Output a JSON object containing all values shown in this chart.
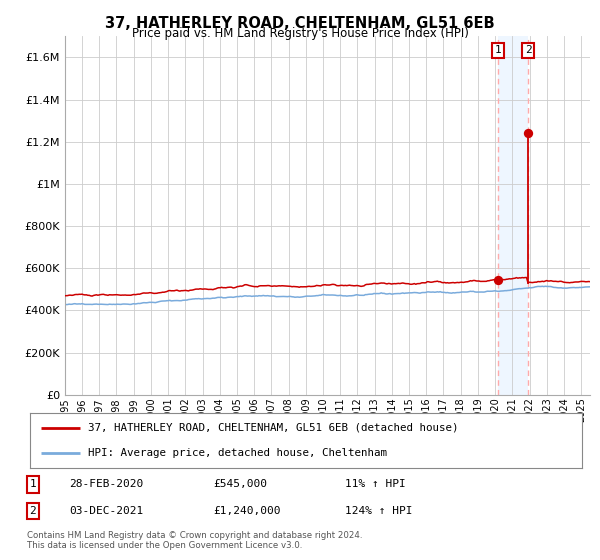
{
  "title": "37, HATHERLEY ROAD, CHELTENHAM, GL51 6EB",
  "subtitle": "Price paid vs. HM Land Registry's House Price Index (HPI)",
  "legend_line1": "37, HATHERLEY ROAD, CHELTENHAM, GL51 6EB (detached house)",
  "legend_line2": "HPI: Average price, detached house, Cheltenham",
  "sale1_label": "1",
  "sale1_date": "28-FEB-2020",
  "sale1_price": "£545,000",
  "sale1_hpi": "11% ↑ HPI",
  "sale1_year": 2020.16,
  "sale1_value": 545000,
  "sale2_label": "2",
  "sale2_date": "03-DEC-2021",
  "sale2_price": "£1,240,000",
  "sale2_hpi": "124% ↑ HPI",
  "sale2_year": 2021.92,
  "sale2_value": 1240000,
  "copyright": "Contains HM Land Registry data © Crown copyright and database right 2024.\nThis data is licensed under the Open Government Licence v3.0.",
  "hpi_color": "#7aabdc",
  "price_color": "#cc0000",
  "vline_color": "#ffaaaa",
  "shade_color": "#d0e8ff",
  "background_color": "#ffffff",
  "grid_color": "#cccccc",
  "ylim": [
    0,
    1700000
  ],
  "xlim_start": 1995.0,
  "xlim_end": 2025.5,
  "yticks": [
    0,
    200000,
    400000,
    600000,
    800000,
    1000000,
    1200000,
    1400000,
    1600000
  ],
  "ytick_labels": [
    "£0",
    "£200K",
    "£400K",
    "£600K",
    "£800K",
    "£1M",
    "£1.2M",
    "£1.4M",
    "£1.6M"
  ],
  "xticks": [
    1995,
    1996,
    1997,
    1998,
    1999,
    2000,
    2001,
    2002,
    2003,
    2004,
    2005,
    2006,
    2007,
    2008,
    2009,
    2010,
    2011,
    2012,
    2013,
    2014,
    2015,
    2016,
    2017,
    2018,
    2019,
    2020,
    2021,
    2022,
    2023,
    2024,
    2025
  ]
}
